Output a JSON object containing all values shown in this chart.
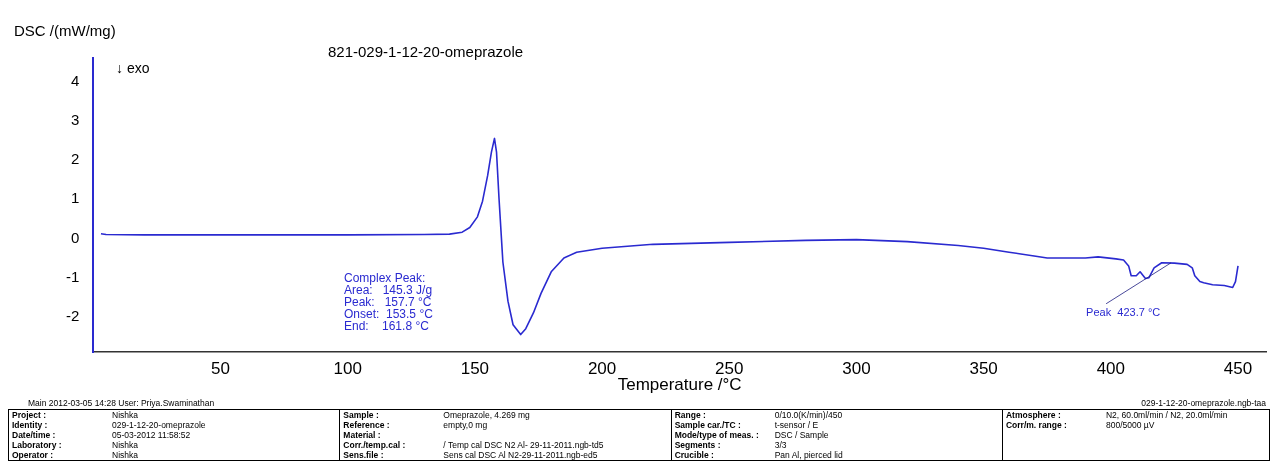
{
  "chart_data": {
    "type": "line",
    "title": "821-029-1-12-20-omeprazole",
    "xlabel": "Temperature /°C",
    "ylabel": "DSC /(mW/mg)",
    "x": [
      3,
      5,
      20,
      60,
      100,
      130,
      140,
      145,
      148,
      151,
      153,
      155,
      156.5,
      157.7,
      158.5,
      159.5,
      161,
      163,
      165,
      168,
      170,
      173,
      176,
      180,
      185,
      190,
      200,
      220,
      250,
      280,
      300,
      320,
      340,
      350,
      360,
      375,
      390,
      395,
      402,
      405,
      407,
      408,
      410,
      411.5,
      413.6,
      415,
      417,
      420,
      425,
      430,
      432,
      433,
      435,
      436.5,
      440,
      444.6,
      447.9,
      449,
      450
    ],
    "values": [
      0.12,
      0.1,
      0.09,
      0.09,
      0.09,
      0.1,
      0.11,
      0.16,
      0.28,
      0.55,
      0.95,
      1.6,
      2.2,
      2.55,
      2.2,
      1.0,
      -0.6,
      -1.6,
      -2.2,
      -2.45,
      -2.3,
      -1.9,
      -1.4,
      -0.85,
      -0.5,
      -0.35,
      -0.25,
      -0.15,
      -0.1,
      -0.05,
      -0.03,
      -0.08,
      -0.18,
      -0.25,
      -0.35,
      -0.5,
      -0.5,
      -0.47,
      -0.52,
      -0.55,
      -0.7,
      -0.95,
      -0.95,
      -0.85,
      -1.02,
      -1.0,
      -0.75,
      -0.62,
      -0.63,
      -0.66,
      -0.75,
      -0.95,
      -1.1,
      -1.13,
      -1.18,
      -1.2,
      -1.25,
      -1.1,
      -0.7
    ],
    "color": "#2a2ad0",
    "xlim": [
      0,
      461
    ],
    "ylim": [
      -2.9,
      4.6
    ],
    "xticks": [
      50,
      100,
      150,
      200,
      250,
      300,
      350,
      400,
      450
    ],
    "yticks": [
      -2,
      -1,
      0,
      1,
      2,
      3,
      4
    ],
    "grid": false,
    "legend": false,
    "marker": "none",
    "line_style": "solid",
    "annotations": [
      "↓ exo",
      "Main   2012-03-05 14:28   User: Priya.Swaminathan",
      "029-1-12-20-omeprazole.ngb-taa",
      "Complex Peak:\nArea:   145.3 J/g\nPeak:   157.7 °C\nOnset:  153.5 °C\nEnd:    161.8 °C",
      {
        "text": "Peak  423.7 °C",
        "x": 423.7,
        "y": -0.62
      },
      "Project : Nishka",
      "Identity : 029-1-12-20-omeprazole",
      "Date/time : 05-03-2012 11:58:52",
      "Laboratory : Nishka",
      "Operator : Nishka",
      "Sample : Omeprazole, 4.269 mg",
      "Reference : empty,0 mg",
      "Material :",
      "Corr./temp.cal : / Temp cal DSC N2 Al- 29-11-2011.ngb-td5",
      "Sens.file : Sens cal DSC Al N2-29-11-2011.ngb-ed5",
      "Range : 0/10.0(K/min)/450",
      "Sample car./TC : t-sensor / E",
      "Mode/type of meas. : DSC / Sample",
      "Segments : 3/3",
      "Crucible : Pan Al, pierced lid",
      "Atmosphere : N2, 60.0ml/min / N2, 20.0ml/min",
      "Corr/m. range : 800/5000 µV"
    ]
  }
}
